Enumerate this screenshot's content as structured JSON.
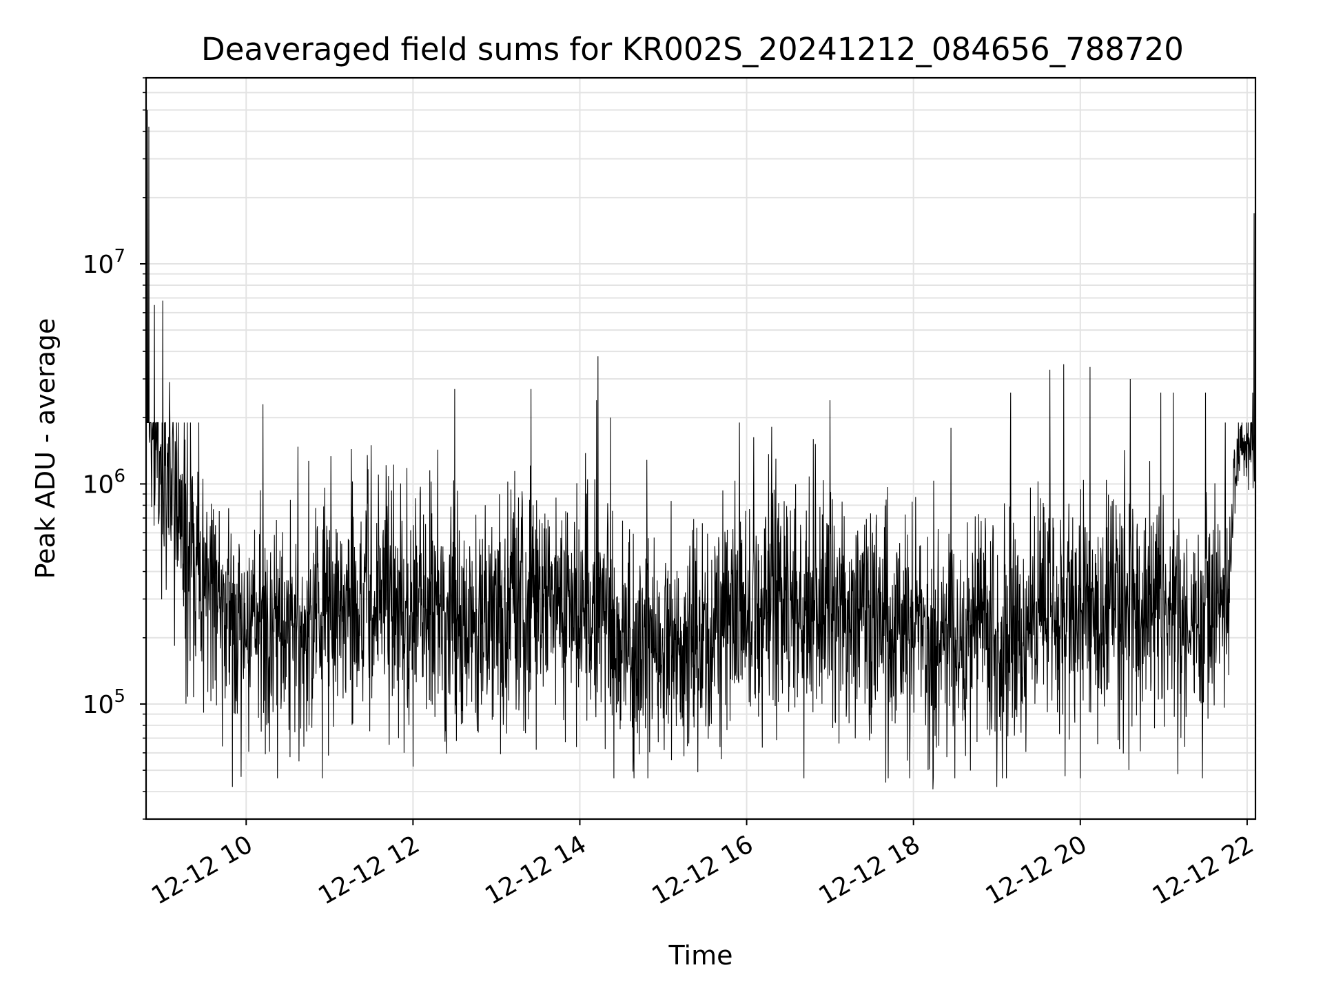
{
  "chart_data": {
    "type": "line",
    "title": "Deaveraged field sums for KR002S_20241212_084656_788720",
    "xlabel": "Time",
    "ylabel": "Peak ADU - average",
    "x_axis": {
      "type": "datetime",
      "range": [
        "2024-12-12 08:48",
        "2024-12-12 22:06"
      ],
      "ticks": [
        "12-12 10",
        "12-12 12",
        "12-12 14",
        "12-12 16",
        "12-12 18",
        "12-12 20",
        "12-12 22"
      ]
    },
    "y_axis": {
      "scale": "log",
      "range": [
        30000,
        70000000
      ],
      "ticks": [
        {
          "value": 100000,
          "base": "10",
          "exp": "5"
        },
        {
          "value": 1000000,
          "base": "10",
          "exp": "6"
        },
        {
          "value": 10000000,
          "base": "10",
          "exp": "7"
        }
      ]
    },
    "grid": true,
    "line_color": "#000000",
    "trend": {
      "description_points_x_hours": [
        8.8,
        8.85,
        8.95,
        9.1,
        9.3,
        9.5,
        9.8,
        10.0,
        10.5,
        11.0,
        11.5,
        12.0,
        12.5,
        13.0,
        13.5,
        14.0,
        14.5,
        15.0,
        15.5,
        16.0,
        16.5,
        17.0,
        17.5,
        18.0,
        18.5,
        19.0,
        19.5,
        20.0,
        20.5,
        21.0,
        21.5,
        21.8,
        21.85,
        22.0,
        22.1
      ],
      "median_y": [
        3000000,
        2000000,
        1500000,
        1100000,
        600000,
        380000,
        250000,
        210000,
        240000,
        270000,
        290000,
        270000,
        240000,
        250000,
        290000,
        260000,
        190000,
        190000,
        190000,
        230000,
        260000,
        300000,
        250000,
        220000,
        200000,
        220000,
        250000,
        260000,
        270000,
        260000,
        250000,
        400000,
        1300000,
        1500000,
        1400000
      ]
    },
    "spikes": [
      {
        "x": "2024-12-12 08:49",
        "y": 50000000
      },
      {
        "x": "2024-12-12 08:50",
        "y": 42000000
      },
      {
        "x": "2024-12-12 08:54",
        "y": 6500000
      },
      {
        "x": "2024-12-12 09:00",
        "y": 6800000
      },
      {
        "x": "2024-12-12 09:05",
        "y": 2900000
      },
      {
        "x": "2024-12-12 10:12",
        "y": 2300000
      },
      {
        "x": "2024-12-12 11:30",
        "y": 1500000
      },
      {
        "x": "2024-12-12 12:30",
        "y": 2700000
      },
      {
        "x": "2024-12-12 13:25",
        "y": 2700000
      },
      {
        "x": "2024-12-12 14:12",
        "y": 2400000
      },
      {
        "x": "2024-12-12 14:13",
        "y": 3800000
      },
      {
        "x": "2024-12-12 14:22",
        "y": 2000000
      },
      {
        "x": "2024-12-12 16:48",
        "y": 1600000
      },
      {
        "x": "2024-12-12 17:00",
        "y": 2400000
      },
      {
        "x": "2024-12-12 18:14",
        "y": 2400000
      },
      {
        "x": "2024-12-12 18:27",
        "y": 1800000
      },
      {
        "x": "2024-12-12 19:10",
        "y": 2600000
      },
      {
        "x": "2024-12-12 19:38",
        "y": 3300000
      },
      {
        "x": "2024-12-12 19:48",
        "y": 3500000
      },
      {
        "x": "2024-12-12 20:07",
        "y": 3400000
      },
      {
        "x": "2024-12-12 20:36",
        "y": 3000000
      },
      {
        "x": "2024-12-12 20:58",
        "y": 2600000
      },
      {
        "x": "2024-12-12 21:07",
        "y": 2600000
      },
      {
        "x": "2024-12-12 21:30",
        "y": 2600000
      },
      {
        "x": "2024-12-12 22:04",
        "y": 2600000
      },
      {
        "x": "2024-12-12 22:05",
        "y": 17000000
      }
    ],
    "dips": [
      {
        "x": "2024-12-12 09:50",
        "y": 42000
      },
      {
        "x": "2024-12-12 12:00",
        "y": 52000
      },
      {
        "x": "2024-12-12 15:25",
        "y": 49000
      },
      {
        "x": "2024-12-12 17:40",
        "y": 44000
      },
      {
        "x": "2024-12-12 18:14",
        "y": 41000
      },
      {
        "x": "2024-12-12 19:00",
        "y": 42000
      },
      {
        "x": "2024-12-12 19:49",
        "y": 47000
      },
      {
        "x": "2024-12-12 21:10",
        "y": 48000
      }
    ]
  }
}
